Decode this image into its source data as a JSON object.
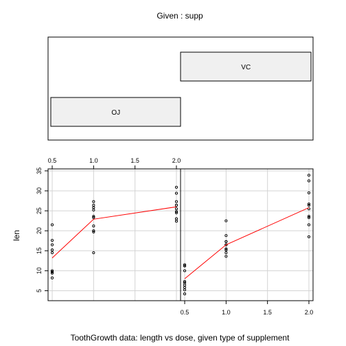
{
  "chart_data": {
    "type": "scatter",
    "title": "Given : supp",
    "xlabel": "ToothGrowth data: length vs dose, given type of supplement",
    "ylabel": "len",
    "xlim": [
      0.45,
      2.05
    ],
    "ylim": [
      2.5,
      35.5
    ],
    "x_ticks": [
      0.5,
      1.0,
      1.5,
      2.0
    ],
    "x_tick_labels": [
      "0.5",
      "1.0",
      "1.5",
      "2.0"
    ],
    "y_ticks": [
      5,
      10,
      15,
      20,
      25,
      30,
      35
    ],
    "y_tick_labels": [
      "5",
      "10",
      "15",
      "20",
      "25",
      "30",
      "35"
    ],
    "grid": true,
    "smoother_color": "#ff0000",
    "given_levels": [
      {
        "label": "OJ",
        "range": [
          0.0,
          0.5
        ]
      },
      {
        "label": "VC",
        "range": [
          0.5,
          1.0
        ]
      }
    ],
    "panels": [
      {
        "group": "OJ",
        "x": [
          0.5,
          0.5,
          0.5,
          0.5,
          0.5,
          0.5,
          0.5,
          0.5,
          0.5,
          0.5,
          1,
          1,
          1,
          1,
          1,
          1,
          1,
          1,
          1,
          1,
          2,
          2,
          2,
          2,
          2,
          2,
          2,
          2,
          2,
          2
        ],
        "y": [
          15.2,
          21.5,
          17.6,
          9.7,
          14.5,
          10.0,
          8.2,
          9.4,
          16.5,
          9.7,
          19.7,
          23.3,
          23.6,
          26.4,
          20.0,
          25.2,
          25.8,
          21.2,
          14.5,
          27.3,
          25.5,
          26.4,
          22.4,
          24.5,
          24.8,
          30.9,
          26.4,
          27.3,
          29.4,
          23.0
        ],
        "smooth_x": [
          0.5,
          1.0,
          2.0
        ],
        "smooth_y": [
          13.2,
          22.9,
          26.0
        ]
      },
      {
        "group": "VC",
        "x": [
          0.5,
          0.5,
          0.5,
          0.5,
          0.5,
          0.5,
          0.5,
          0.5,
          0.5,
          0.5,
          1,
          1,
          1,
          1,
          1,
          1,
          1,
          1,
          1,
          1,
          2,
          2,
          2,
          2,
          2,
          2,
          2,
          2,
          2,
          2
        ],
        "y": [
          4.2,
          11.5,
          7.3,
          5.8,
          6.4,
          10.0,
          11.2,
          11.2,
          5.2,
          7.0,
          16.5,
          16.5,
          15.2,
          17.3,
          22.5,
          17.3,
          13.6,
          14.5,
          18.8,
          15.5,
          23.6,
          18.5,
          33.9,
          25.5,
          26.4,
          32.5,
          26.7,
          21.5,
          23.3,
          29.5
        ],
        "smooth_x": [
          0.5,
          1.0,
          2.0
        ],
        "smooth_y": [
          8.0,
          16.5,
          25.8
        ]
      }
    ]
  }
}
